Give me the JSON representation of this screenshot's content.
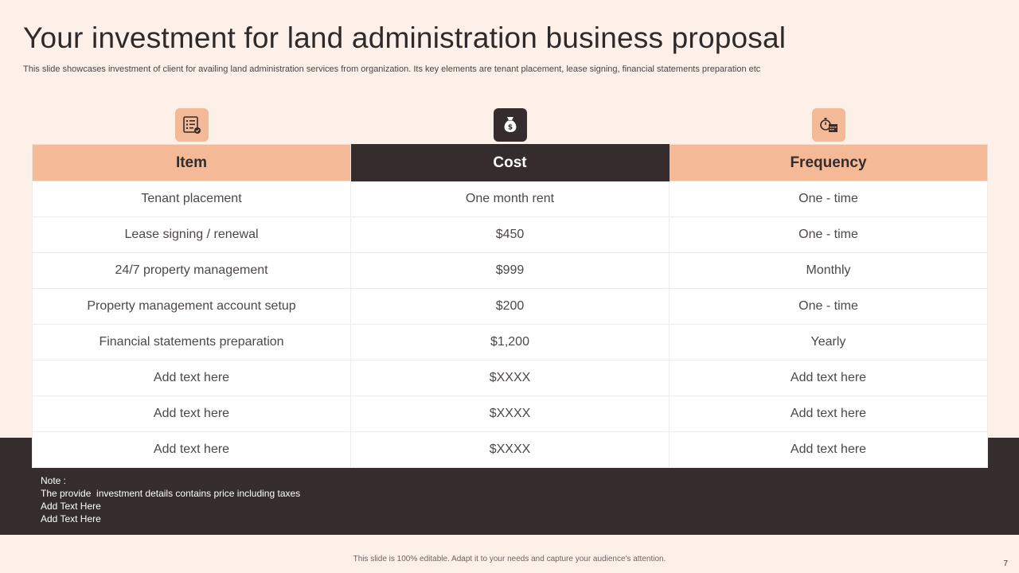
{
  "slide": {
    "title": "Your investment for land administration business proposal",
    "subtitle": "This slide showcases investment of client for availing land administration services from organization. Its key elements are tenant placement, lease signing, financial statements preparation etc"
  },
  "icons": [
    "checklist-icon",
    "money-bag-icon",
    "stopwatch-calendar-icon"
  ],
  "table": {
    "headers": [
      "Item",
      "Cost",
      "Frequency"
    ],
    "rows": [
      [
        "Tenant placement",
        "One month rent",
        "One - time"
      ],
      [
        "Lease signing / renewal",
        "$450",
        "One - time"
      ],
      [
        "24/7 property management",
        "$999",
        "Monthly"
      ],
      [
        "Property management account setup",
        "$200",
        "One - time"
      ],
      [
        "Financial statements preparation",
        "$1,200",
        "Yearly"
      ],
      [
        "Add text here",
        "$XXXX",
        "Add text here"
      ],
      [
        "Add text here",
        "$XXXX",
        "Add text here"
      ],
      [
        "Add text here",
        "$XXXX",
        "Add text here"
      ]
    ]
  },
  "note": {
    "heading": "Note :",
    "lines": [
      "The provide  investment details contains price including taxes",
      "Add Text Here",
      "Add Text Here"
    ]
  },
  "footer": "This slide is 100% editable.  Adapt it to your needs and capture your audience's attention.",
  "page_number": "7",
  "colors": {
    "background": "#fdf0e8",
    "accent": "#f4b996",
    "dark": "#352d2d"
  }
}
